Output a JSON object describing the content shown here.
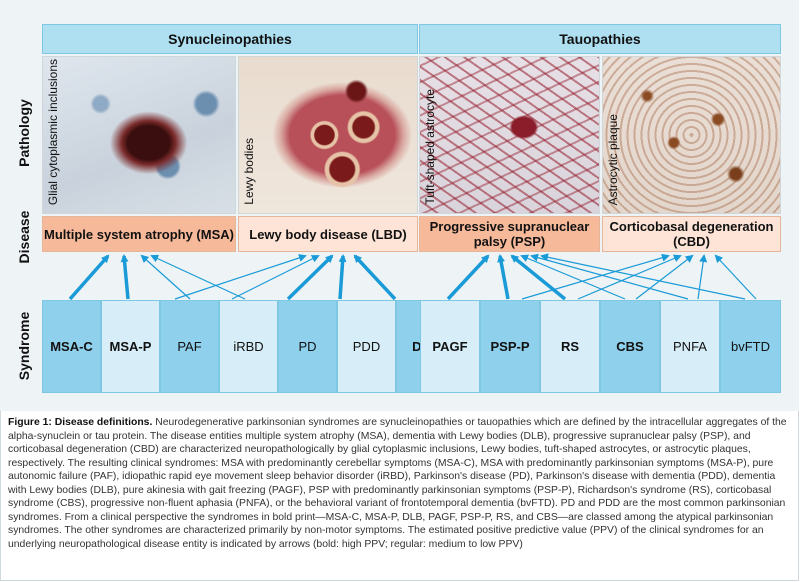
{
  "groups": {
    "synucleinopathies": "Synucleinopathies",
    "tauopathies": "Tauopathies"
  },
  "row_labels": {
    "pathology": "Pathology",
    "disease": "Disease",
    "syndrome": "Syndrome"
  },
  "pathology": [
    {
      "label": "Glial cytoplasmic inclusions"
    },
    {
      "label": "Lewy bodies"
    },
    {
      "label": "Tuft-shaped astrocyte"
    },
    {
      "label": "Astrocytic plaque"
    }
  ],
  "diseases": [
    {
      "label": "Multiple system atrophy (MSA)"
    },
    {
      "label": "Lewy body disease (LBD)"
    },
    {
      "label": "Progressive supranuclear palsy (PSP)"
    },
    {
      "label": "Corticobasal degeneration (CBD)"
    }
  ],
  "syndromes": [
    {
      "label": "MSA-C",
      "bold": true
    },
    {
      "label": "MSA-P",
      "bold": true
    },
    {
      "label": "PAF",
      "bold": false
    },
    {
      "label": "iRBD",
      "bold": false
    },
    {
      "label": "PD",
      "bold": false
    },
    {
      "label": "PDD",
      "bold": false
    },
    {
      "label": "DLB",
      "bold": true
    },
    {
      "label": "PAGF",
      "bold": true
    },
    {
      "label": "PSP-P",
      "bold": true
    },
    {
      "label": "RS",
      "bold": true
    },
    {
      "label": "CBS",
      "bold": true
    },
    {
      "label": "PNFA",
      "bold": false
    },
    {
      "label": "bvFTD",
      "bold": false
    }
  ],
  "colors": {
    "arrow": "#1a9bd7",
    "header": "#aee0f2",
    "disease_dark": "#f6b99a",
    "disease_light": "#fde4d6",
    "syn_dark": "#8fd0ec",
    "syn_light": "#d7eef8"
  },
  "caption": {
    "title": "Figure 1: Disease definitions.",
    "text": "Neurodegenerative parkinsonian syndromes are synucleinopathies or tauopathies which are defined by the intracellular aggregates of the alpha-synuclein or tau protein. The disease entities multiple system atrophy (MSA), dementia with Lewy bodies (DLB), progressive supranuclear palsy (PSP), and corticobasal degeneration (CBD) are characterized neuropathologically by glial cytoplasmic inclusions, Lewy bodies, tuft-shaped astrocytes, or astrocytic plaques, respectively. The resulting clinical syndromes: MSA with predominantly cerebellar symptoms (MSA-C), MSA with predominantly parkinsonian symptoms (MSA-P), pure autonomic failure (PAF), idiopathic rapid eye movement sleep behavior disorder (iRBD), Parkinson's disease (PD), Parkinson's disease with dementia (PDD), dementia with Lewy bodies (DLB), pure akinesia with gait freezing (PAGF), PSP with predominantly parkinsonian symptoms (PSP-P), Richardson's syndrome (RS), corticobasal syndrome (CBS), progressive non-fluent aphasia (PNFA), or the behavioral variant of frontotemporal dementia (bvFTD). PD and PDD are the most common parkinsonian syndromes. From a clinical perspective the syndromes in bold print—MSA-C, MSA-P, DLB, PAGF, PSP-P, RS, and CBS—are classed among the atypical parkinsonian syndromes. The other syndromes are characterized primarily by non-motor symptoms. The estimated positive predictive value (PPV) of the clinical syndromes for an underlying neuropathological disease entity is indicated by arrows (bold: high PPV; regular: medium to low PPV)"
  }
}
